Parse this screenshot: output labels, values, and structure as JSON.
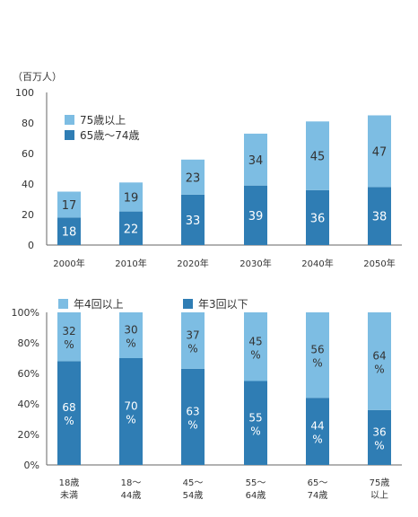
{
  "colors": {
    "light": "#7dbde3",
    "dark": "#2f7db4",
    "axis": "#666666",
    "grid": "#dddddd"
  },
  "chart_data": [
    {
      "type": "bar",
      "stacked": true,
      "unit_label": "（百万人）",
      "categories": [
        "2000年",
        "2010年",
        "2020年",
        "2030年",
        "2040年",
        "2050年"
      ],
      "yticks": [
        "0",
        "20",
        "40",
        "60",
        "80",
        "100"
      ],
      "ylim": [
        0,
        100
      ],
      "series": [
        {
          "name": "65歳～74歳",
          "values": [
            18,
            22,
            33,
            39,
            36,
            38
          ]
        },
        {
          "name": "75歳以上",
          "values": [
            17,
            19,
            23,
            34,
            45,
            47
          ]
        }
      ],
      "legend_order": [
        "75歳以上",
        "65歳～74歳"
      ],
      "legend_position": "top-left",
      "grid": false
    },
    {
      "type": "bar",
      "stacked": true,
      "percent": true,
      "categories": [
        [
          "18歳",
          "未満"
        ],
        [
          "18～",
          "44歳"
        ],
        [
          "45～",
          "54歳"
        ],
        [
          "55～",
          "64歳"
        ],
        [
          "65～",
          "74歳"
        ],
        [
          "75歳",
          "以上"
        ]
      ],
      "yticks": [
        "0%",
        "20%",
        "40%",
        "60%",
        "80%",
        "100%"
      ],
      "ylim": [
        0,
        100
      ],
      "series": [
        {
          "name": "年3回以下",
          "values": [
            68,
            70,
            63,
            55,
            44,
            36
          ]
        },
        {
          "name": "年4回以上",
          "values": [
            32,
            30,
            37,
            45,
            56,
            64
          ]
        }
      ],
      "legend_order": [
        "年4回以上",
        "年3回以下"
      ],
      "legend_position": "top",
      "value_suffix": "%",
      "grid": false
    }
  ]
}
